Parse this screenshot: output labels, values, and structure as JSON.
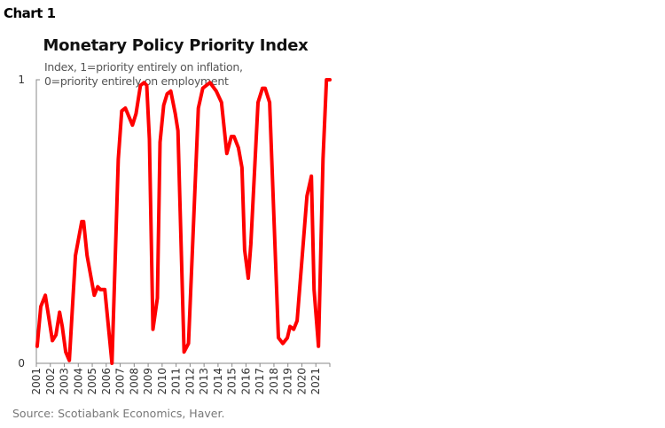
{
  "header": {
    "label": "Chart 1"
  },
  "footer": {
    "source": "Source: Scotiabank Economics, Haver."
  },
  "chart_data": {
    "type": "line",
    "title": "Monetary Policy Priority Index",
    "subtitle": [
      "Index, 1=priority entirely on inflation,",
      "0=priority entirely on employment"
    ],
    "xlabel": "",
    "ylabel": "",
    "xlim": [
      2001,
      2022
    ],
    "ylim": [
      0,
      1
    ],
    "y_ticks": [
      {
        "value": 0,
        "label": "0"
      },
      {
        "value": 1,
        "label": "1"
      }
    ],
    "x_tick_labels": [
      "2001",
      "2002",
      "2003",
      "2004",
      "2005",
      "2006",
      "2007",
      "2008",
      "2009",
      "2010",
      "2011",
      "2012",
      "2013",
      "2014",
      "2015",
      "2016",
      "2017",
      "2018",
      "2019",
      "2020",
      "2021"
    ],
    "grid": false,
    "series_color": "#ff0000",
    "series": [
      {
        "x": [
          2001.06,
          2001.32,
          2001.64,
          2002.15,
          2002.4,
          2002.66,
          2002.85,
          2003.1,
          2003.36,
          2003.8,
          2004.25,
          2004.38,
          2004.63,
          2005.14,
          2005.39,
          2005.59,
          2005.9,
          2006.41,
          2006.86,
          2007.11,
          2007.37,
          2007.88,
          2008.13,
          2008.45,
          2008.71,
          2008.9,
          2009.09,
          2009.34,
          2009.66,
          2009.85,
          2010.11,
          2010.36,
          2010.62,
          2010.94,
          2011.13,
          2011.57,
          2011.89,
          2012.59,
          2012.91,
          2013.42,
          2013.87,
          2014.25,
          2014.63,
          2014.95,
          2015.14,
          2015.46,
          2015.71,
          2015.9,
          2016.16,
          2016.35,
          2016.86,
          2017.18,
          2017.37,
          2017.69,
          2018.32,
          2018.64,
          2018.96,
          2019.15,
          2019.41,
          2019.66,
          2020.36,
          2020.68,
          2020.87,
          2021.19,
          2021.51,
          2021.76,
          2022.0
        ],
        "y": [
          0.06,
          0.2,
          0.24,
          0.08,
          0.1,
          0.18,
          0.13,
          0.04,
          0.01,
          0.38,
          0.5,
          0.5,
          0.38,
          0.24,
          0.27,
          0.26,
          0.26,
          0.0,
          0.72,
          0.89,
          0.9,
          0.84,
          0.88,
          0.98,
          0.99,
          0.98,
          0.79,
          0.12,
          0.23,
          0.78,
          0.91,
          0.95,
          0.96,
          0.88,
          0.82,
          0.04,
          0.07,
          0.9,
          0.97,
          0.99,
          0.96,
          0.92,
          0.74,
          0.8,
          0.8,
          0.76,
          0.69,
          0.4,
          0.3,
          0.42,
          0.92,
          0.97,
          0.97,
          0.92,
          0.09,
          0.07,
          0.09,
          0.13,
          0.12,
          0.15,
          0.59,
          0.66,
          0.26,
          0.06,
          0.72,
          1.0,
          1.0
        ]
      }
    ]
  }
}
